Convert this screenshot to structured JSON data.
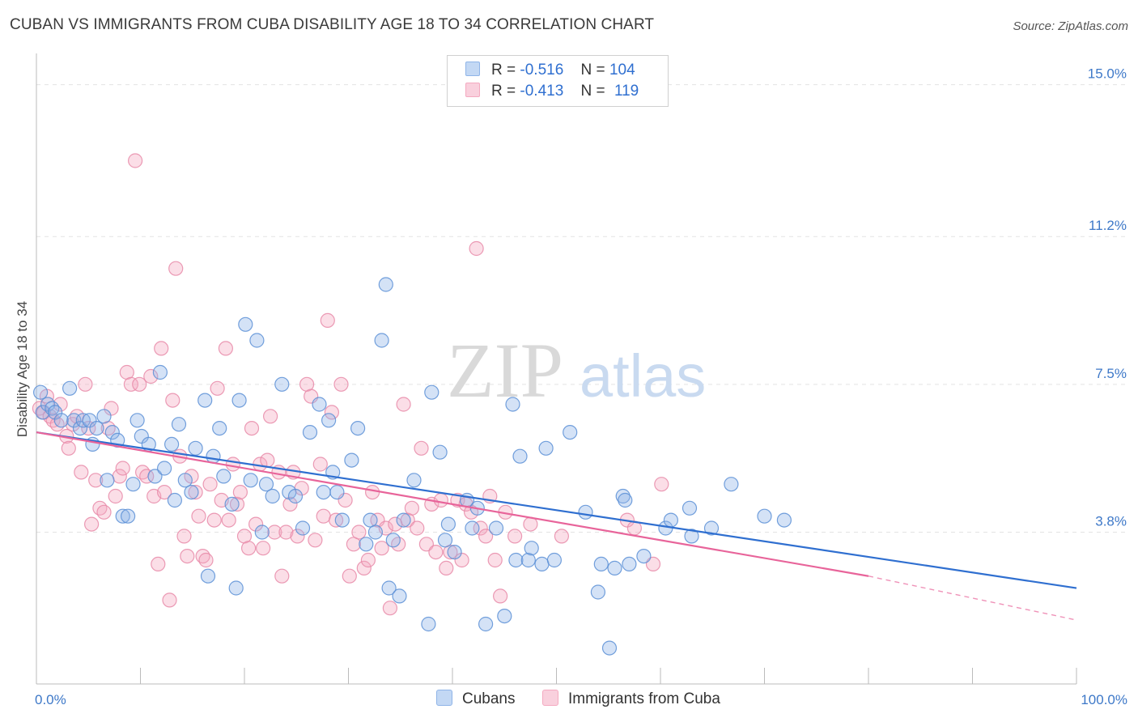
{
  "title": "CUBAN VS IMMIGRANTS FROM CUBA DISABILITY AGE 18 TO 34 CORRELATION CHART",
  "source": "Source: ZipAtlas.com",
  "watermark": {
    "zip": "ZIP",
    "atlas": "atlas"
  },
  "legend": {
    "rows": [
      {
        "r_label": "R =",
        "r_value": "-0.516",
        "n_label": "N =",
        "n_value": "104",
        "color": "#8fb4e8"
      },
      {
        "r_label": "R =",
        "r_value": "-0.413",
        "n_label": "N =",
        "n_value": "119",
        "color": "#f4a9c0"
      }
    ]
  },
  "bottom_legend": {
    "series1": "Cubans",
    "series2": "Immigrants from Cuba"
  },
  "chart_data": {
    "type": "scatter",
    "ylabel": "Disability Age 18 to 34",
    "xlabel": "",
    "x_ticks": [
      "0.0%",
      "100.0%"
    ],
    "y_ticks": [
      "3.8%",
      "7.5%",
      "11.2%",
      "15.0%"
    ],
    "xlim": [
      0,
      100
    ],
    "ylim": [
      0,
      15.5
    ],
    "grid": true,
    "series": [
      {
        "name": "Cubans",
        "color": "#8fb4e8",
        "stroke": "#5b8fd6",
        "trend": {
          "x0": 0,
          "y0": 6.3,
          "x1": 100,
          "y1": 2.4,
          "color": "#2f6fd0"
        },
        "points": [
          [
            0.4,
            7.3
          ],
          [
            0.6,
            6.8
          ],
          [
            1.1,
            7.0
          ],
          [
            1.5,
            6.9
          ],
          [
            1.8,
            6.8
          ],
          [
            2.4,
            6.6
          ],
          [
            3.2,
            7.4
          ],
          [
            3.6,
            6.6
          ],
          [
            4.2,
            6.4
          ],
          [
            4.5,
            6.6
          ],
          [
            5.1,
            6.6
          ],
          [
            5.4,
            6.0
          ],
          [
            5.8,
            6.4
          ],
          [
            6.5,
            6.7
          ],
          [
            6.8,
            5.1
          ],
          [
            7.3,
            6.3
          ],
          [
            7.8,
            6.1
          ],
          [
            8.3,
            4.2
          ],
          [
            8.8,
            4.2
          ],
          [
            9.3,
            5.0
          ],
          [
            9.7,
            6.6
          ],
          [
            10.1,
            6.2
          ],
          [
            10.8,
            6.0
          ],
          [
            11.4,
            5.2
          ],
          [
            11.9,
            7.8
          ],
          [
            12.3,
            5.4
          ],
          [
            13.0,
            6.0
          ],
          [
            13.3,
            4.6
          ],
          [
            13.7,
            6.5
          ],
          [
            14.3,
            5.1
          ],
          [
            14.9,
            4.8
          ],
          [
            15.3,
            5.9
          ],
          [
            16.2,
            7.1
          ],
          [
            16.5,
            2.7
          ],
          [
            17.0,
            5.7
          ],
          [
            17.6,
            6.4
          ],
          [
            18.0,
            5.2
          ],
          [
            18.8,
            4.5
          ],
          [
            19.2,
            2.4
          ],
          [
            19.5,
            7.1
          ],
          [
            20.1,
            9.0
          ],
          [
            20.6,
            5.1
          ],
          [
            21.2,
            8.6
          ],
          [
            21.7,
            3.8
          ],
          [
            22.1,
            5.0
          ],
          [
            22.7,
            4.7
          ],
          [
            23.6,
            7.5
          ],
          [
            24.3,
            4.8
          ],
          [
            24.9,
            4.7
          ],
          [
            25.6,
            3.9
          ],
          [
            26.3,
            6.3
          ],
          [
            27.2,
            7.0
          ],
          [
            27.6,
            4.8
          ],
          [
            28.1,
            6.6
          ],
          [
            28.5,
            5.3
          ],
          [
            28.9,
            4.8
          ],
          [
            29.4,
            4.1
          ],
          [
            30.3,
            5.6
          ],
          [
            30.9,
            6.4
          ],
          [
            31.7,
            3.5
          ],
          [
            32.1,
            4.1
          ],
          [
            32.6,
            3.8
          ],
          [
            33.2,
            8.6
          ],
          [
            33.6,
            10.0
          ],
          [
            33.9,
            2.4
          ],
          [
            34.3,
            3.6
          ],
          [
            34.9,
            2.2
          ],
          [
            35.3,
            4.1
          ],
          [
            36.3,
            5.1
          ],
          [
            37.7,
            1.5
          ],
          [
            38.0,
            7.3
          ],
          [
            38.8,
            5.8
          ],
          [
            39.3,
            3.6
          ],
          [
            39.6,
            4.0
          ],
          [
            40.2,
            3.3
          ],
          [
            41.4,
            4.6
          ],
          [
            41.9,
            3.9
          ],
          [
            42.4,
            4.4
          ],
          [
            43.2,
            1.5
          ],
          [
            44.2,
            3.9
          ],
          [
            45.0,
            1.7
          ],
          [
            45.8,
            7.0
          ],
          [
            46.1,
            3.1
          ],
          [
            46.5,
            5.7
          ],
          [
            47.3,
            3.1
          ],
          [
            47.6,
            3.4
          ],
          [
            48.6,
            3.0
          ],
          [
            49.0,
            5.9
          ],
          [
            49.8,
            3.1
          ],
          [
            51.3,
            6.3
          ],
          [
            52.8,
            4.3
          ],
          [
            54.0,
            2.3
          ],
          [
            54.3,
            3.0
          ],
          [
            55.1,
            0.9
          ],
          [
            55.6,
            2.9
          ],
          [
            56.4,
            4.7
          ],
          [
            56.6,
            4.6
          ],
          [
            57.0,
            3.0
          ],
          [
            58.4,
            3.2
          ],
          [
            60.5,
            3.9
          ],
          [
            61.0,
            4.1
          ],
          [
            62.8,
            4.4
          ],
          [
            63.0,
            3.7
          ],
          [
            64.9,
            3.9
          ],
          [
            66.8,
            5.0
          ],
          [
            70.0,
            4.2
          ],
          [
            71.9,
            4.1
          ]
        ]
      },
      {
        "name": "Immigrants from Cuba",
        "color": "#f4a9c0",
        "stroke": "#e88aa8",
        "trend": {
          "x0": 0,
          "y0": 6.3,
          "x1": 80,
          "y1": 2.7,
          "dash_to_x": 100,
          "dash_to_y": 1.6,
          "color": "#e8649a"
        },
        "points": [
          [
            0.3,
            6.9
          ],
          [
            0.7,
            6.8
          ],
          [
            1.0,
            7.2
          ],
          [
            1.3,
            6.7
          ],
          [
            1.6,
            6.6
          ],
          [
            2.0,
            6.5
          ],
          [
            2.3,
            7.0
          ],
          [
            2.9,
            6.2
          ],
          [
            3.1,
            5.9
          ],
          [
            3.5,
            6.5
          ],
          [
            3.9,
            6.7
          ],
          [
            4.3,
            5.3
          ],
          [
            4.7,
            7.5
          ],
          [
            5.0,
            6.4
          ],
          [
            5.3,
            4.0
          ],
          [
            5.7,
            5.1
          ],
          [
            6.1,
            4.4
          ],
          [
            6.5,
            4.3
          ],
          [
            6.9,
            6.4
          ],
          [
            7.2,
            6.9
          ],
          [
            7.6,
            4.7
          ],
          [
            8.0,
            5.2
          ],
          [
            8.3,
            5.4
          ],
          [
            8.7,
            7.8
          ],
          [
            9.1,
            7.5
          ],
          [
            9.5,
            13.1
          ],
          [
            9.9,
            7.5
          ],
          [
            10.2,
            5.3
          ],
          [
            10.6,
            5.2
          ],
          [
            11.0,
            7.7
          ],
          [
            11.3,
            4.7
          ],
          [
            11.7,
            3.0
          ],
          [
            12.0,
            8.4
          ],
          [
            12.3,
            4.8
          ],
          [
            12.8,
            2.1
          ],
          [
            13.1,
            7.1
          ],
          [
            13.4,
            10.4
          ],
          [
            13.8,
            5.7
          ],
          [
            14.2,
            3.7
          ],
          [
            14.5,
            3.2
          ],
          [
            14.9,
            5.2
          ],
          [
            15.3,
            4.8
          ],
          [
            15.6,
            4.2
          ],
          [
            16.0,
            3.2
          ],
          [
            16.3,
            3.1
          ],
          [
            16.7,
            5.0
          ],
          [
            17.1,
            4.1
          ],
          [
            17.4,
            7.4
          ],
          [
            17.8,
            4.6
          ],
          [
            18.2,
            8.4
          ],
          [
            18.5,
            4.1
          ],
          [
            18.9,
            5.5
          ],
          [
            19.3,
            4.5
          ],
          [
            19.6,
            4.8
          ],
          [
            20.0,
            3.7
          ],
          [
            20.4,
            3.4
          ],
          [
            20.7,
            6.4
          ],
          [
            21.1,
            4.0
          ],
          [
            21.5,
            5.5
          ],
          [
            21.8,
            3.4
          ],
          [
            22.2,
            5.6
          ],
          [
            22.5,
            6.7
          ],
          [
            22.9,
            3.8
          ],
          [
            23.3,
            5.3
          ],
          [
            23.6,
            2.7
          ],
          [
            24.0,
            3.8
          ],
          [
            24.4,
            4.5
          ],
          [
            24.7,
            5.3
          ],
          [
            25.1,
            3.7
          ],
          [
            25.5,
            4.9
          ],
          [
            26.0,
            7.5
          ],
          [
            26.4,
            7.2
          ],
          [
            26.8,
            3.6
          ],
          [
            27.3,
            5.5
          ],
          [
            27.6,
            4.2
          ],
          [
            28.0,
            9.1
          ],
          [
            28.4,
            6.8
          ],
          [
            28.8,
            4.1
          ],
          [
            29.3,
            7.5
          ],
          [
            29.7,
            4.6
          ],
          [
            30.1,
            2.7
          ],
          [
            30.5,
            3.5
          ],
          [
            31.0,
            3.8
          ],
          [
            31.5,
            2.9
          ],
          [
            31.9,
            3.1
          ],
          [
            32.3,
            4.8
          ],
          [
            32.8,
            4.1
          ],
          [
            33.2,
            3.4
          ],
          [
            33.6,
            3.9
          ],
          [
            34.0,
            1.9
          ],
          [
            34.5,
            4.0
          ],
          [
            34.8,
            3.5
          ],
          [
            35.3,
            7.0
          ],
          [
            35.7,
            4.1
          ],
          [
            36.1,
            4.4
          ],
          [
            36.6,
            3.9
          ],
          [
            37.0,
            5.9
          ],
          [
            37.5,
            3.5
          ],
          [
            38.0,
            4.5
          ],
          [
            38.4,
            3.3
          ],
          [
            38.9,
            4.6
          ],
          [
            39.4,
            2.9
          ],
          [
            39.8,
            3.3
          ],
          [
            40.5,
            4.6
          ],
          [
            40.9,
            3.1
          ],
          [
            41.3,
            4.5
          ],
          [
            41.8,
            4.3
          ],
          [
            42.3,
            10.9
          ],
          [
            42.7,
            3.9
          ],
          [
            43.2,
            3.7
          ],
          [
            43.6,
            4.7
          ],
          [
            44.1,
            3.1
          ],
          [
            44.6,
            2.2
          ],
          [
            45.1,
            4.3
          ],
          [
            46.0,
            3.7
          ],
          [
            47.5,
            4.0
          ],
          [
            50.5,
            3.7
          ],
          [
            56.8,
            4.1
          ],
          [
            57.5,
            3.9
          ],
          [
            59.3,
            3.0
          ],
          [
            60.1,
            5.0
          ]
        ]
      }
    ]
  }
}
